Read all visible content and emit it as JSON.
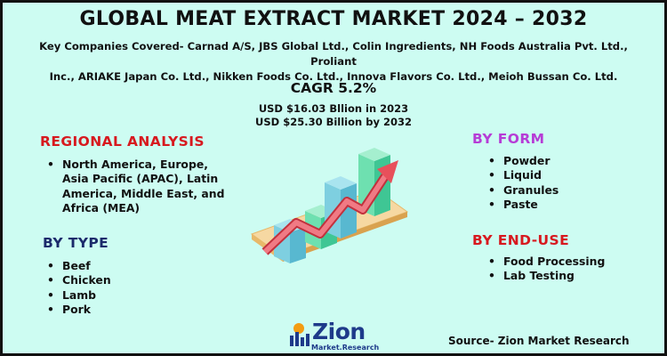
{
  "title": "GLOBAL MEAT EXTRACT MARKET 2024 – 2032",
  "companies": {
    "line1": "Key Companies Covered- Carnad A/S, JBS Global Ltd., Colin Ingredients, NH Foods Australia Pvt. Ltd., Proliant",
    "line2": "Inc., ARIAKE Japan Co. Ltd., Nikken Foods Co. Ltd., Innova Flavors Co. Ltd., Meioh Bussan Co. Ltd."
  },
  "cagr": "CAGR 5.2%",
  "market_2023": "USD $16.03 Bllion in 2023",
  "market_2032": "USD $25.30 Billion by 2032",
  "regional": {
    "heading": "REGIONAL ANALYSIS",
    "items": [
      "North America, Europe, Asia Pacific (APAC), Latin America, Middle East, and Africa (MEA)"
    ]
  },
  "by_type": {
    "heading": "BY TYPE",
    "items": [
      "Beef",
      "Chicken",
      "Lamb",
      "Pork"
    ]
  },
  "by_form": {
    "heading": "BY FORM",
    "items": [
      "Powder",
      "Liquid",
      "Granules",
      "Paste"
    ]
  },
  "by_end_use": {
    "heading": "BY END-USE",
    "items": [
      "Food Processing",
      "Lab Testing"
    ]
  },
  "logo": {
    "text": "Zion",
    "subtext": "Market.Research"
  },
  "source": "Source- Zion Market Research",
  "colors": {
    "background": "#cdfcf2",
    "regional_heading": "#d7191f",
    "type_heading": "#1b2a6b",
    "form_heading": "#b63cd6",
    "end_use_heading": "#d7191f",
    "bar_blue": "#7ecfe0",
    "bar_green": "#6ee0b0",
    "arrow": "#e8505b",
    "platform": "#f6d8a2"
  },
  "icons": [
    "bar-growth-illustration",
    "zion-logo-icon"
  ]
}
